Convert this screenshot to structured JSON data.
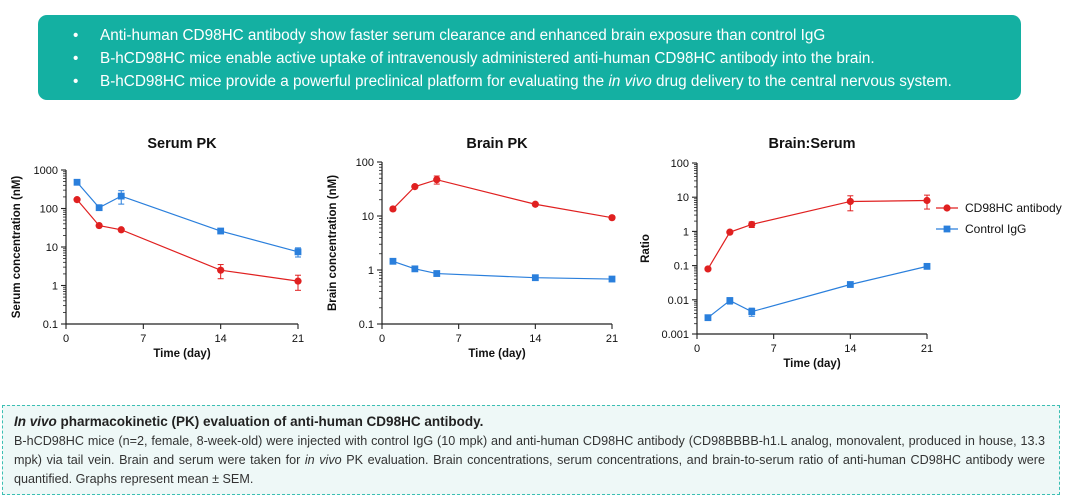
{
  "summary": {
    "bullets": [
      {
        "before": "Anti-human CD98HC antibody show faster serum clearance and enhanced brain exposure than control IgG",
        "italic": "",
        "after": ""
      },
      {
        "before": "B-hCD98HC mice enable active uptake of intravenously administered anti-human CD98HC antibody into the brain.",
        "italic": "",
        "after": ""
      },
      {
        "before": "B-hCD98HC mice provide a powerful preclinical platform for evaluating the ",
        "italic": "in vivo",
        "after": " drug delivery to the central nervous system."
      }
    ]
  },
  "legend": [
    {
      "name": "CD98HC antibody",
      "color": "#e02020",
      "marker": "circle"
    },
    {
      "name": "Control IgG",
      "color": "#2a7fdc",
      "marker": "square"
    }
  ],
  "chart_data": [
    {
      "type": "line",
      "title": "Serum PK",
      "xlabel": "Time (day)",
      "ylabel": "Serum concentration (nM)",
      "yscale": "log",
      "ylim": [
        0.1,
        1000
      ],
      "yticks": [
        "0.1",
        "1",
        "10",
        "100",
        "1000"
      ],
      "xlim": [
        0,
        21
      ],
      "xticks": [
        "0",
        "7",
        "14",
        "21"
      ],
      "grid": false,
      "series": [
        {
          "name": "CD98HC antibody",
          "x": [
            1,
            3,
            5,
            14,
            21
          ],
          "y": [
            170,
            36,
            28,
            2.5,
            1.3
          ],
          "err": [
            15,
            3,
            2,
            1.0,
            0.55
          ]
        },
        {
          "name": "Control IgG",
          "x": [
            1,
            3,
            5,
            14,
            21
          ],
          "y": [
            480,
            105,
            210,
            26,
            7.5
          ],
          "err": [
            40,
            10,
            80,
            3,
            2
          ]
        }
      ]
    },
    {
      "type": "line",
      "title": "Brain PK",
      "xlabel": "Time (day)",
      "ylabel": "Brain concentration (nM)",
      "yscale": "log",
      "ylim": [
        0.1,
        100
      ],
      "yticks": [
        "0.1",
        "1",
        "10",
        "100"
      ],
      "xlim": [
        0,
        21
      ],
      "xticks": [
        "0",
        "7",
        "14",
        "21"
      ],
      "grid": false,
      "series": [
        {
          "name": "CD98HC antibody",
          "x": [
            1,
            3,
            5,
            14,
            21
          ],
          "y": [
            13.5,
            35,
            47,
            16.5,
            9.3
          ],
          "err": [
            1,
            2,
            8,
            1,
            0.6
          ]
        },
        {
          "name": "Control IgG",
          "x": [
            1,
            3,
            5,
            14,
            21
          ],
          "y": [
            1.45,
            1.05,
            0.86,
            0.72,
            0.68
          ],
          "err": [
            0.08,
            0.06,
            0.05,
            0.04,
            0.04
          ]
        }
      ]
    },
    {
      "type": "line",
      "title": "Brain:Serum",
      "xlabel": "Time (day)",
      "ylabel": "Ratio",
      "yscale": "log",
      "ylim": [
        0.001,
        100
      ],
      "yticks": [
        "0.001",
        "0.01",
        "0.1",
        "1",
        "10",
        "100"
      ],
      "xlim": [
        0,
        21
      ],
      "xticks": [
        "0",
        "7",
        "14",
        "21"
      ],
      "grid": false,
      "legend_position": "right",
      "series": [
        {
          "name": "CD98HC antibody",
          "x": [
            1,
            3,
            5,
            14,
            21
          ],
          "y": [
            0.08,
            0.95,
            1.6,
            7.5,
            8.0
          ],
          "err": [
            0.005,
            0.05,
            0.3,
            3.5,
            3.5
          ]
        },
        {
          "name": "Control IgG",
          "x": [
            1,
            3,
            5,
            14,
            21
          ],
          "y": [
            0.003,
            0.0095,
            0.0045,
            0.028,
            0.095
          ],
          "err": [
            0.0003,
            0.002,
            0.0012,
            0.003,
            0.015
          ]
        }
      ]
    }
  ],
  "caption": {
    "title_italic": "In vivo",
    "title_rest": " pharmacokinetic (PK) evaluation of anti-human CD98HC antibody.",
    "body_before": "B-hCD98HC mice (n=2, female, 8-week-old) were injected with control IgG (10 mpk) and anti-human CD98HC antibody (CD98BBBB-h1.L analog, monovalent, produced in house, 13.3 mpk) via tail vein. Brain and serum were taken for ",
    "body_italic": "in vivo",
    "body_after": " PK evaluation. Brain concentrations, serum concentrations, and brain-to-serum ratio of anti-human CD98HC antibody were quantified. Graphs represent mean ± SEM."
  }
}
